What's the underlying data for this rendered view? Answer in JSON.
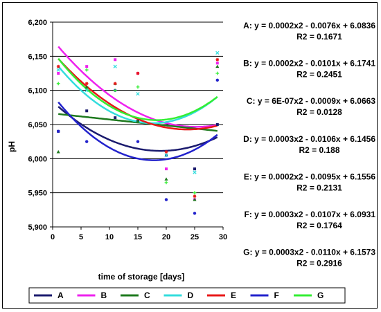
{
  "chart_data": {
    "type": "scatter",
    "title": "",
    "xlabel": "time of storage [days]",
    "ylabel": "pH",
    "xlim": [
      0,
      30
    ],
    "ylim": [
      5.9,
      6.2
    ],
    "x_ticks": [
      0,
      5,
      10,
      15,
      20,
      25,
      30
    ],
    "y_ticks": [
      {
        "value": 5.9,
        "label": "5,900"
      },
      {
        "value": 5.95,
        "label": "5,950"
      },
      {
        "value": 6.0,
        "label": "6,000"
      },
      {
        "value": 6.05,
        "label": "6,050"
      },
      {
        "value": 6.1,
        "label": "6,100"
      },
      {
        "value": 6.15,
        "label": "6,150"
      },
      {
        "value": 6.2,
        "label": "6,200"
      }
    ],
    "grid": "horizontal",
    "legend_position": "bottom",
    "x": [
      1,
      6,
      11,
      15,
      20,
      25,
      29
    ],
    "series": [
      {
        "name": "A",
        "color": "#1b1b6e",
        "marker": "square",
        "values": [
          6.04,
          6.07,
          6.06,
          6.055,
          6.005,
          5.985,
          6.05
        ],
        "trend": {
          "a": 0.0002,
          "b": -0.0076,
          "c": 6.0836
        },
        "equation": "A: y = 0.0002x2 - 0.0076x + 6.0836",
        "r2": "R2 = 0.1671"
      },
      {
        "name": "B",
        "color": "#ee22ee",
        "marker": "square",
        "values": [
          6.125,
          6.135,
          6.145,
          6.125,
          5.985,
          5.94,
          6.14
        ],
        "trend": {
          "a": 0.0002,
          "b": -0.0101,
          "c": 6.1741
        },
        "equation": "B: y = 0.0002x2 - 0.0101x + 6.1741",
        "r2": "R2 = 0.2451"
      },
      {
        "name": "C",
        "color": "#1e7a1e",
        "marker": "triangle",
        "values": [
          6.01,
          6.105,
          6.11,
          6.055,
          5.97,
          5.94,
          6.135
        ],
        "trend": {
          "a": 6e-07,
          "b": -0.0009,
          "c": 6.0663
        },
        "equation": "C: y = 6E-07x2 - 0.0009x + 6.0663",
        "r2": "R2 = 0.0128"
      },
      {
        "name": "D",
        "color": "#33dddd",
        "marker": "x",
        "values": [
          6.13,
          6.1,
          6.135,
          6.095,
          6.005,
          5.98,
          6.155
        ],
        "trend": {
          "a": 0.0003,
          "b": -0.0106,
          "c": 6.1456
        },
        "equation": "D: y = 0.0003x2 - 0.0106x + 6.1456",
        "r2": "R2 = 0.188"
      },
      {
        "name": "E",
        "color": "#e81818",
        "marker": "star",
        "values": [
          6.135,
          6.11,
          6.11,
          6.125,
          6.01,
          5.945,
          6.145
        ],
        "trend": {
          "a": 0.0002,
          "b": -0.0095,
          "c": 6.1556
        },
        "equation": "E: y = 0.0002x2 - 0.0095x + 6.1556",
        "r2": "R2 = 0.2131"
      },
      {
        "name": "F",
        "color": "#2222cc",
        "marker": "circle",
        "values": [
          6.04,
          6.025,
          6.1,
          6.025,
          5.94,
          5.92,
          6.115
        ],
        "trend": {
          "a": 0.0003,
          "b": -0.0107,
          "c": 6.0931
        },
        "equation": "F: y = 0.0003x2 - 0.0107x + 6.0931",
        "r2": "R2 = 0.1764"
      },
      {
        "name": "G",
        "color": "#33ee33",
        "marker": "plus",
        "values": [
          6.11,
          6.13,
          6.1,
          6.105,
          5.965,
          5.95,
          6.125
        ],
        "trend": {
          "a": 0.0003,
          "b": -0.011,
          "c": 6.1573
        },
        "equation": "G: y = 0.0003x2 - 0.0110x + 6.1573",
        "r2": "R2 = 0.2916"
      }
    ]
  }
}
